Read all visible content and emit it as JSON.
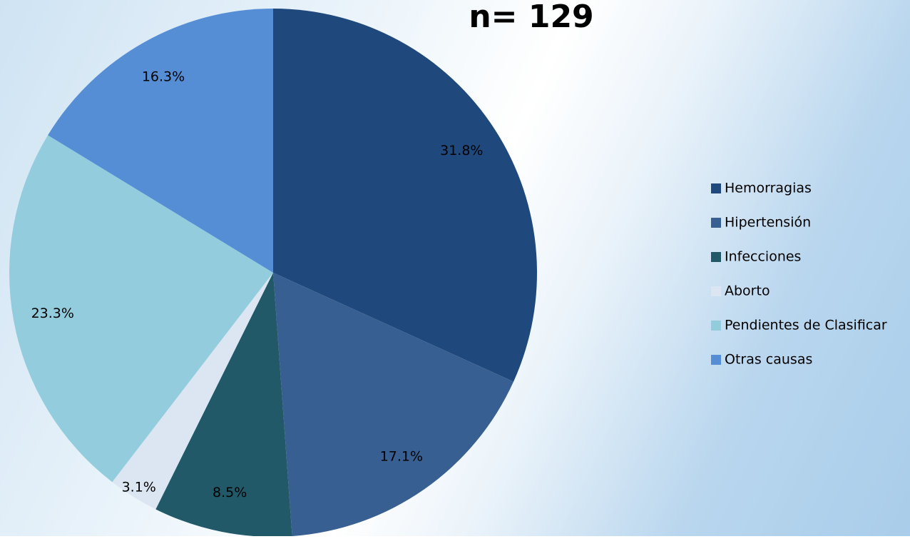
{
  "chart_data": {
    "type": "pie",
    "title": "n= 129",
    "categories": [
      "Hemorragias",
      "Hipertensión",
      "Infecciones",
      "Aborto",
      "Pendientes de Clasificar",
      "Otras causas"
    ],
    "values": [
      31.8,
      17.1,
      8.5,
      3.1,
      23.3,
      16.3
    ],
    "value_labels": [
      "31.8%",
      "17.1%",
      "8.5%",
      "3.1%",
      "23.3%",
      "16.3%"
    ],
    "colors": [
      "#1f497d",
      "#375f91",
      "#215968",
      "#dce6f2",
      "#93cddd",
      "#558ed5"
    ],
    "legend": "right"
  }
}
